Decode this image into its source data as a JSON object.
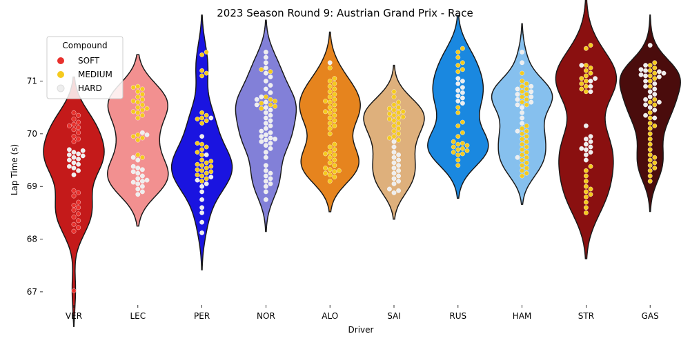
{
  "chart_data": {
    "type": "violin",
    "title": "2023 Season Round 9: Austrian Grand Prix - Race",
    "xlabel": "Driver",
    "ylabel": "Lap Time (s)",
    "ylim": [
      66.75,
      71.95
    ],
    "yticks": [
      67,
      68,
      69,
      70,
      71
    ],
    "grid": false,
    "legend": {
      "title": "Compound",
      "placement": "top-left",
      "entries": [
        {
          "label": "SOFT",
          "color": "#e8302c"
        },
        {
          "label": "MEDIUM",
          "color": "#f5ca1e"
        },
        {
          "label": "HARD",
          "color": "#eeeeee"
        }
      ]
    },
    "categories": [
      "VER",
      "LEC",
      "PER",
      "NOR",
      "ALO",
      "SAI",
      "RUS",
      "HAM",
      "STR",
      "GAS"
    ],
    "violin_colors": [
      "#c41a1a",
      "#f29090",
      "#1a14e0",
      "#8280d8",
      "#e6841e",
      "#deb07c",
      "#1a88e0",
      "#86c0ee",
      "#8a1010",
      "#4a0c0c"
    ],
    "series": [
      {
        "driver": "VER",
        "laps": [
          {
            "compound": "SOFT",
            "values": [
              67.02,
              68.15,
              68.22,
              68.28,
              68.35,
              68.42,
              68.48,
              68.55,
              68.6,
              68.64,
              68.7,
              68.82,
              68.88,
              68.92,
              69.85,
              69.9,
              69.95,
              70.02,
              70.08,
              70.12,
              70.15,
              70.18,
              70.22,
              70.28,
              70.35,
              70.4
            ]
          },
          {
            "compound": "HARD",
            "values": [
              69.22,
              69.3,
              69.35,
              69.38,
              69.42,
              69.45,
              69.5,
              69.52,
              69.55,
              69.58,
              69.6,
              69.62,
              69.65,
              69.68,
              69.7
            ]
          }
        ]
      },
      {
        "driver": "LEC",
        "laps": [
          {
            "compound": "MEDIUM",
            "values": [
              69.55,
              69.6,
              69.88,
              69.92,
              69.95,
              69.98,
              70.3,
              70.35,
              70.4,
              70.42,
              70.45,
              70.48,
              70.5,
              70.55,
              70.6,
              70.62,
              70.65,
              70.7,
              70.75,
              70.8,
              70.85,
              70.88,
              70.9
            ]
          },
          {
            "compound": "HARD",
            "values": [
              68.85,
              68.9,
              68.95,
              69.0,
              69.05,
              69.08,
              69.1,
              69.12,
              69.15,
              69.2,
              69.25,
              69.28,
              69.32,
              69.35,
              69.38,
              69.5,
              69.55,
              69.98,
              70.02
            ]
          }
        ]
      },
      {
        "driver": "PER",
        "laps": [
          {
            "compound": "MEDIUM",
            "values": [
              69.1,
              69.15,
              69.2,
              69.22,
              69.25,
              69.28,
              69.3,
              69.32,
              69.35,
              69.38,
              69.4,
              69.42,
              69.45,
              69.48,
              69.5,
              69.6,
              69.65,
              69.7,
              69.75,
              69.8,
              69.82,
              70.2,
              70.25,
              70.28,
              70.3,
              70.35,
              70.4,
              71.1,
              71.15,
              71.2,
              71.5,
              71.55
            ]
          },
          {
            "compound": "HARD",
            "values": [
              68.12,
              68.32,
              68.5,
              68.6,
              68.75,
              68.9,
              69.0,
              69.05,
              69.12,
              69.18,
              69.6,
              69.95,
              70.3
            ]
          }
        ]
      },
      {
        "driver": "NOR",
        "laps": [
          {
            "compound": "MEDIUM",
            "values": [
              70.48,
              70.52,
              70.55,
              70.58,
              70.62,
              70.65,
              70.7,
              71.18,
              71.22
            ]
          },
          {
            "compound": "HARD",
            "values": [
              68.75,
              68.9,
              69.0,
              69.05,
              69.1,
              69.15,
              69.2,
              69.25,
              69.3,
              69.4,
              69.55,
              69.65,
              69.72,
              69.78,
              69.82,
              69.85,
              69.88,
              69.9,
              69.92,
              69.95,
              69.98,
              70.02,
              70.05,
              70.1,
              70.15,
              70.2,
              70.25,
              70.3,
              70.35,
              70.4,
              70.45,
              70.5,
              70.55,
              70.6,
              70.65,
              70.7,
              70.78,
              70.85,
              70.92,
              71.0,
              71.08,
              71.15,
              71.25,
              71.35,
              71.45,
              71.55
            ]
          }
        ]
      },
      {
        "driver": "ALO",
        "laps": [
          {
            "compound": "MEDIUM",
            "values": [
              69.1,
              69.18,
              69.22,
              69.25,
              69.28,
              69.3,
              69.32,
              69.35,
              69.4,
              69.45,
              69.5,
              69.55,
              69.6,
              69.62,
              69.65,
              69.7,
              69.75,
              69.8,
              70.0,
              70.1,
              70.15,
              70.2,
              70.25,
              70.3,
              70.35,
              70.4,
              70.42,
              70.45,
              70.5,
              70.55,
              70.6,
              70.62,
              70.65,
              70.7,
              70.75,
              70.8,
              70.85,
              70.9,
              70.95,
              71.0,
              71.05,
              71.25
            ]
          },
          {
            "compound": "HARD",
            "values": [
              71.35
            ]
          }
        ]
      },
      {
        "driver": "SAI",
        "laps": [
          {
            "compound": "MEDIUM",
            "values": [
              69.88,
              69.92,
              69.95,
              70.0,
              70.05,
              70.1,
              70.15,
              70.2,
              70.25,
              70.28,
              70.3,
              70.32,
              70.35,
              70.38,
              70.4,
              70.42,
              70.45,
              70.48,
              70.5,
              70.55,
              70.6,
              70.7,
              70.8
            ]
          },
          {
            "compound": "HARD",
            "values": [
              68.88,
              68.92,
              68.95,
              69.05,
              69.1,
              69.15,
              69.2,
              69.25,
              69.3,
              69.35,
              69.4,
              69.45,
              69.5,
              69.55,
              69.6,
              69.65,
              69.75,
              69.85
            ]
          }
        ]
      },
      {
        "driver": "RUS",
        "laps": [
          {
            "compound": "MEDIUM",
            "values": [
              69.4,
              69.5,
              69.6,
              69.62,
              69.65,
              69.68,
              69.7,
              69.72,
              69.75,
              69.78,
              69.8,
              69.82,
              69.85,
              69.95,
              70.02,
              70.15,
              70.22,
              70.4,
              70.5,
              71.18,
              71.22,
              71.3,
              71.35,
              71.45,
              71.55,
              71.62
            ]
          },
          {
            "compound": "HARD",
            "values": [
              70.58,
              70.62,
              70.68,
              70.72,
              70.78,
              70.82,
              70.88,
              70.95,
              71.0,
              71.05
            ]
          }
        ]
      },
      {
        "driver": "HAM",
        "laps": [
          {
            "compound": "MEDIUM",
            "values": [
              69.2,
              69.25,
              69.3,
              69.35,
              69.4,
              69.45,
              69.5,
              69.55,
              69.6,
              69.65,
              69.7,
              69.75,
              69.8,
              69.85,
              69.9,
              69.95,
              70.0,
              70.05,
              70.1,
              70.15,
              70.55,
              70.6,
              70.65,
              70.7,
              70.75,
              70.8,
              70.85,
              70.9,
              70.95,
              71.0,
              71.15
            ]
          },
          {
            "compound": "HARD",
            "values": [
              69.55,
              70.05,
              70.2,
              70.3,
              70.4,
              70.5,
              70.55,
              70.6,
              70.65,
              70.7,
              70.75,
              70.8,
              70.85,
              70.9,
              71.35,
              71.55
            ]
          }
        ]
      },
      {
        "driver": "STR",
        "laps": [
          {
            "compound": "MEDIUM",
            "values": [
              68.5,
              68.6,
              68.7,
              68.8,
              68.85,
              68.9,
              68.95,
              69.0,
              69.1,
              69.2,
              69.3,
              69.38,
              70.8,
              70.85,
              70.9,
              70.95,
              71.0,
              71.05,
              71.1,
              71.15,
              71.2,
              71.25,
              71.3,
              71.62,
              71.68
            ]
          },
          {
            "compound": "HARD",
            "values": [
              69.5,
              69.6,
              69.65,
              69.7,
              69.72,
              69.75,
              69.8,
              69.85,
              69.9,
              69.95,
              70.15,
              70.8,
              70.9,
              71.0,
              71.05,
              71.3
            ]
          }
        ]
      },
      {
        "driver": "GAS",
        "laps": [
          {
            "compound": "MEDIUM",
            "values": [
              69.1,
              69.2,
              69.3,
              69.35,
              69.4,
              69.45,
              69.5,
              69.55,
              69.6,
              69.7,
              69.8,
              69.9,
              70.0,
              70.1,
              70.15,
              70.2,
              70.3,
              70.4,
              70.55,
              70.6,
              70.65,
              70.9,
              71.0,
              71.05,
              71.1,
              71.15,
              71.2,
              71.25,
              71.3,
              71.35
            ]
          },
          {
            "compound": "HARD",
            "values": [
              70.3,
              70.35,
              70.45,
              70.5,
              70.55,
              70.6,
              70.65,
              70.7,
              70.75,
              70.8,
              70.85,
              70.9,
              70.95,
              71.0,
              71.08,
              71.1,
              71.12,
              71.15,
              71.18,
              71.2,
              71.22,
              71.3,
              71.68
            ]
          }
        ]
      }
    ]
  }
}
